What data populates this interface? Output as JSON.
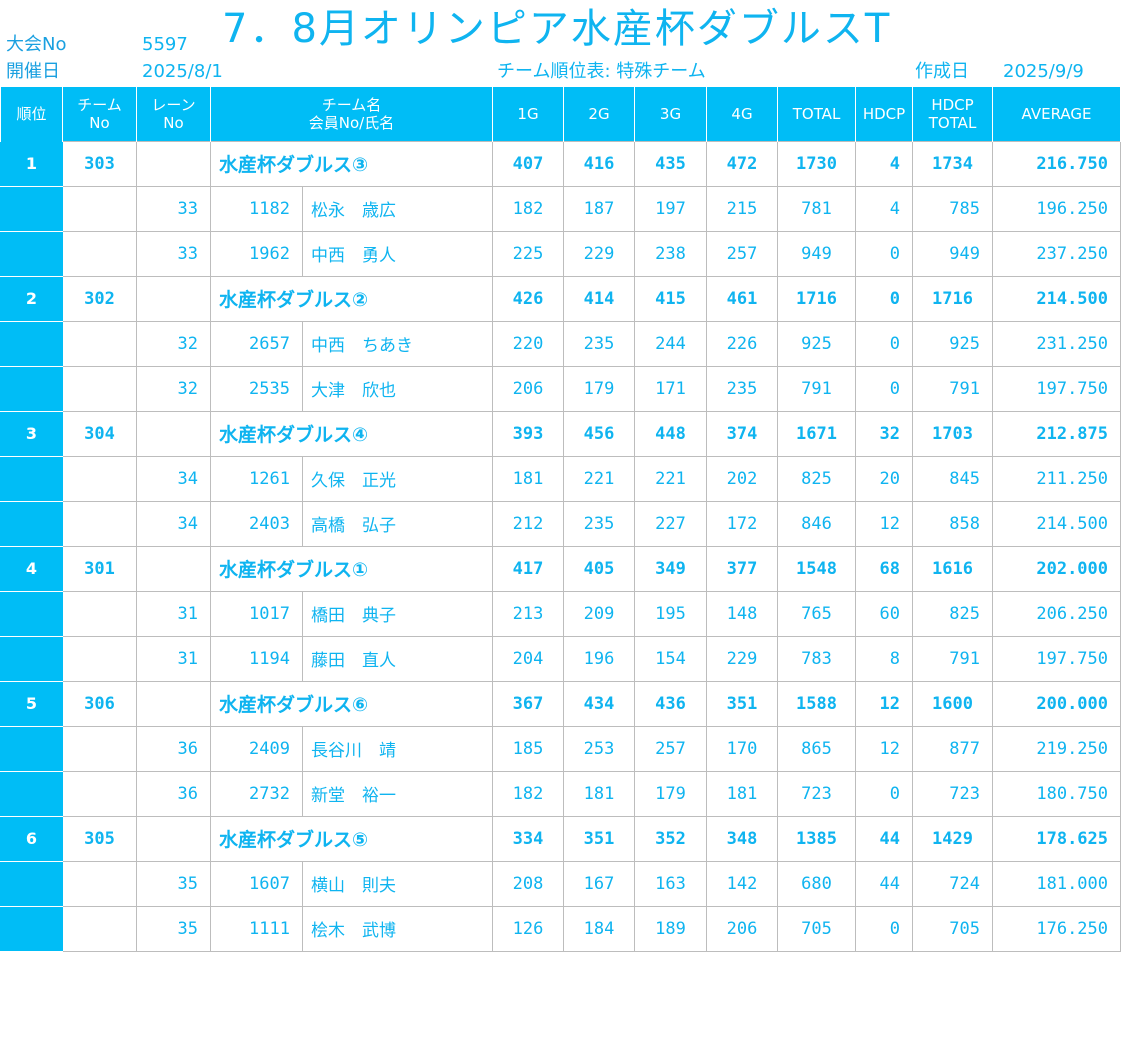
{
  "header": {
    "meet_no_label": "大会No",
    "meet_no": "5597",
    "date_label": "開催日",
    "date": "2025/8/1",
    "title": "7．8月オリンピア水産杯ダブルスT",
    "subtitle": "チーム順位表: 特殊チーム",
    "created_label": "作成日",
    "created_date": "2025/9/9"
  },
  "columns": {
    "rank": "順位",
    "team_no_1": "チーム",
    "team_no_2": "No",
    "lane_no_1": "レーン",
    "lane_no_2": "No",
    "name_1": "チーム名",
    "name_2": "会員No/氏名",
    "g1": "1G",
    "g2": "2G",
    "g3": "3G",
    "g4": "4G",
    "total": "TOTAL",
    "hdcp": "HDCP",
    "hdcp_total_1": "HDCP",
    "hdcp_total_2": "TOTAL",
    "average": "AVERAGE"
  },
  "teams": [
    {
      "rank": "1",
      "team_no": "303",
      "name": "水産杯ダブルス③",
      "g1": "407",
      "g2": "416",
      "g3": "435",
      "g4": "472",
      "total": "1730",
      "hdcp": "4",
      "hdcp_total": "1734",
      "average": "216.750",
      "members": [
        {
          "lane": "33",
          "member_no": "1182",
          "name": "松永　歳広",
          "g1": "182",
          "g2": "187",
          "g3": "197",
          "g4": "215",
          "total": "781",
          "hdcp": "4",
          "hdcp_total": "785",
          "average": "196.250"
        },
        {
          "lane": "33",
          "member_no": "1962",
          "name": "中西　勇人",
          "g1": "225",
          "g2": "229",
          "g3": "238",
          "g4": "257",
          "total": "949",
          "hdcp": "0",
          "hdcp_total": "949",
          "average": "237.250"
        }
      ]
    },
    {
      "rank": "2",
      "team_no": "302",
      "name": "水産杯ダブルス②",
      "g1": "426",
      "g2": "414",
      "g3": "415",
      "g4": "461",
      "total": "1716",
      "hdcp": "0",
      "hdcp_total": "1716",
      "average": "214.500",
      "members": [
        {
          "lane": "32",
          "member_no": "2657",
          "name": "中西　ちあき",
          "g1": "220",
          "g2": "235",
          "g3": "244",
          "g4": "226",
          "total": "925",
          "hdcp": "0",
          "hdcp_total": "925",
          "average": "231.250"
        },
        {
          "lane": "32",
          "member_no": "2535",
          "name": "大津　欣也",
          "g1": "206",
          "g2": "179",
          "g3": "171",
          "g4": "235",
          "total": "791",
          "hdcp": "0",
          "hdcp_total": "791",
          "average": "197.750"
        }
      ]
    },
    {
      "rank": "3",
      "team_no": "304",
      "name": "水産杯ダブルス④",
      "g1": "393",
      "g2": "456",
      "g3": "448",
      "g4": "374",
      "total": "1671",
      "hdcp": "32",
      "hdcp_total": "1703",
      "average": "212.875",
      "members": [
        {
          "lane": "34",
          "member_no": "1261",
          "name": "久保　正光",
          "g1": "181",
          "g2": "221",
          "g3": "221",
          "g4": "202",
          "total": "825",
          "hdcp": "20",
          "hdcp_total": "845",
          "average": "211.250"
        },
        {
          "lane": "34",
          "member_no": "2403",
          "name": "高橋　弘子",
          "g1": "212",
          "g2": "235",
          "g3": "227",
          "g4": "172",
          "total": "846",
          "hdcp": "12",
          "hdcp_total": "858",
          "average": "214.500"
        }
      ]
    },
    {
      "rank": "4",
      "team_no": "301",
      "name": "水産杯ダブルス①",
      "g1": "417",
      "g2": "405",
      "g3": "349",
      "g4": "377",
      "total": "1548",
      "hdcp": "68",
      "hdcp_total": "1616",
      "average": "202.000",
      "members": [
        {
          "lane": "31",
          "member_no": "1017",
          "name": "橋田　典子",
          "g1": "213",
          "g2": "209",
          "g3": "195",
          "g4": "148",
          "total": "765",
          "hdcp": "60",
          "hdcp_total": "825",
          "average": "206.250"
        },
        {
          "lane": "31",
          "member_no": "1194",
          "name": "藤田　直人",
          "g1": "204",
          "g2": "196",
          "g3": "154",
          "g4": "229",
          "total": "783",
          "hdcp": "8",
          "hdcp_total": "791",
          "average": "197.750"
        }
      ]
    },
    {
      "rank": "5",
      "team_no": "306",
      "name": "水産杯ダブルス⑥",
      "g1": "367",
      "g2": "434",
      "g3": "436",
      "g4": "351",
      "total": "1588",
      "hdcp": "12",
      "hdcp_total": "1600",
      "average": "200.000",
      "members": [
        {
          "lane": "36",
          "member_no": "2409",
          "name": "長谷川　靖",
          "g1": "185",
          "g2": "253",
          "g3": "257",
          "g4": "170",
          "total": "865",
          "hdcp": "12",
          "hdcp_total": "877",
          "average": "219.250"
        },
        {
          "lane": "36",
          "member_no": "2732",
          "name": "新堂　裕一",
          "g1": "182",
          "g2": "181",
          "g3": "179",
          "g4": "181",
          "total": "723",
          "hdcp": "0",
          "hdcp_total": "723",
          "average": "180.750"
        }
      ]
    },
    {
      "rank": "6",
      "team_no": "305",
      "name": "水産杯ダブルス⑤",
      "g1": "334",
      "g2": "351",
      "g3": "352",
      "g4": "348",
      "total": "1385",
      "hdcp": "44",
      "hdcp_total": "1429",
      "average": "178.625",
      "members": [
        {
          "lane": "35",
          "member_no": "1607",
          "name": "横山　則夫",
          "g1": "208",
          "g2": "167",
          "g3": "163",
          "g4": "142",
          "total": "680",
          "hdcp": "44",
          "hdcp_total": "724",
          "average": "181.000"
        },
        {
          "lane": "35",
          "member_no": "1111",
          "name": "桧木　武博",
          "g1": "126",
          "g2": "184",
          "g3": "189",
          "g4": "206",
          "total": "705",
          "hdcp": "0",
          "hdcp_total": "705",
          "average": "176.250"
        }
      ]
    }
  ]
}
